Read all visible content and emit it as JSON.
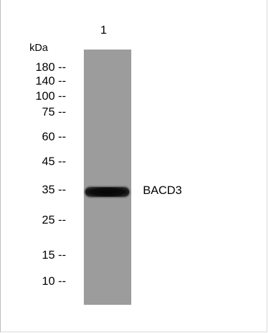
{
  "lanes": [
    {
      "label": "1"
    }
  ],
  "unit_label": "kDa",
  "markers": [
    {
      "label": "180 --",
      "mw": 180
    },
    {
      "label": "140 --",
      "mw": 140
    },
    {
      "label": "100 --",
      "mw": 100
    },
    {
      "label": "75 --",
      "mw": 75
    },
    {
      "label": "60 --",
      "mw": 60
    },
    {
      "label": "45 --",
      "mw": 45
    },
    {
      "label": "35 --",
      "mw": 35
    },
    {
      "label": "25 --",
      "mw": 25
    },
    {
      "label": "15 --",
      "mw": 15
    },
    {
      "label": "10 --",
      "mw": 10
    }
  ],
  "band": {
    "label": "BACD3",
    "lane": 1,
    "marker_level": 35
  },
  "colors": {
    "lane_background": "#9c9c9c",
    "band": "#0a0a0a"
  }
}
